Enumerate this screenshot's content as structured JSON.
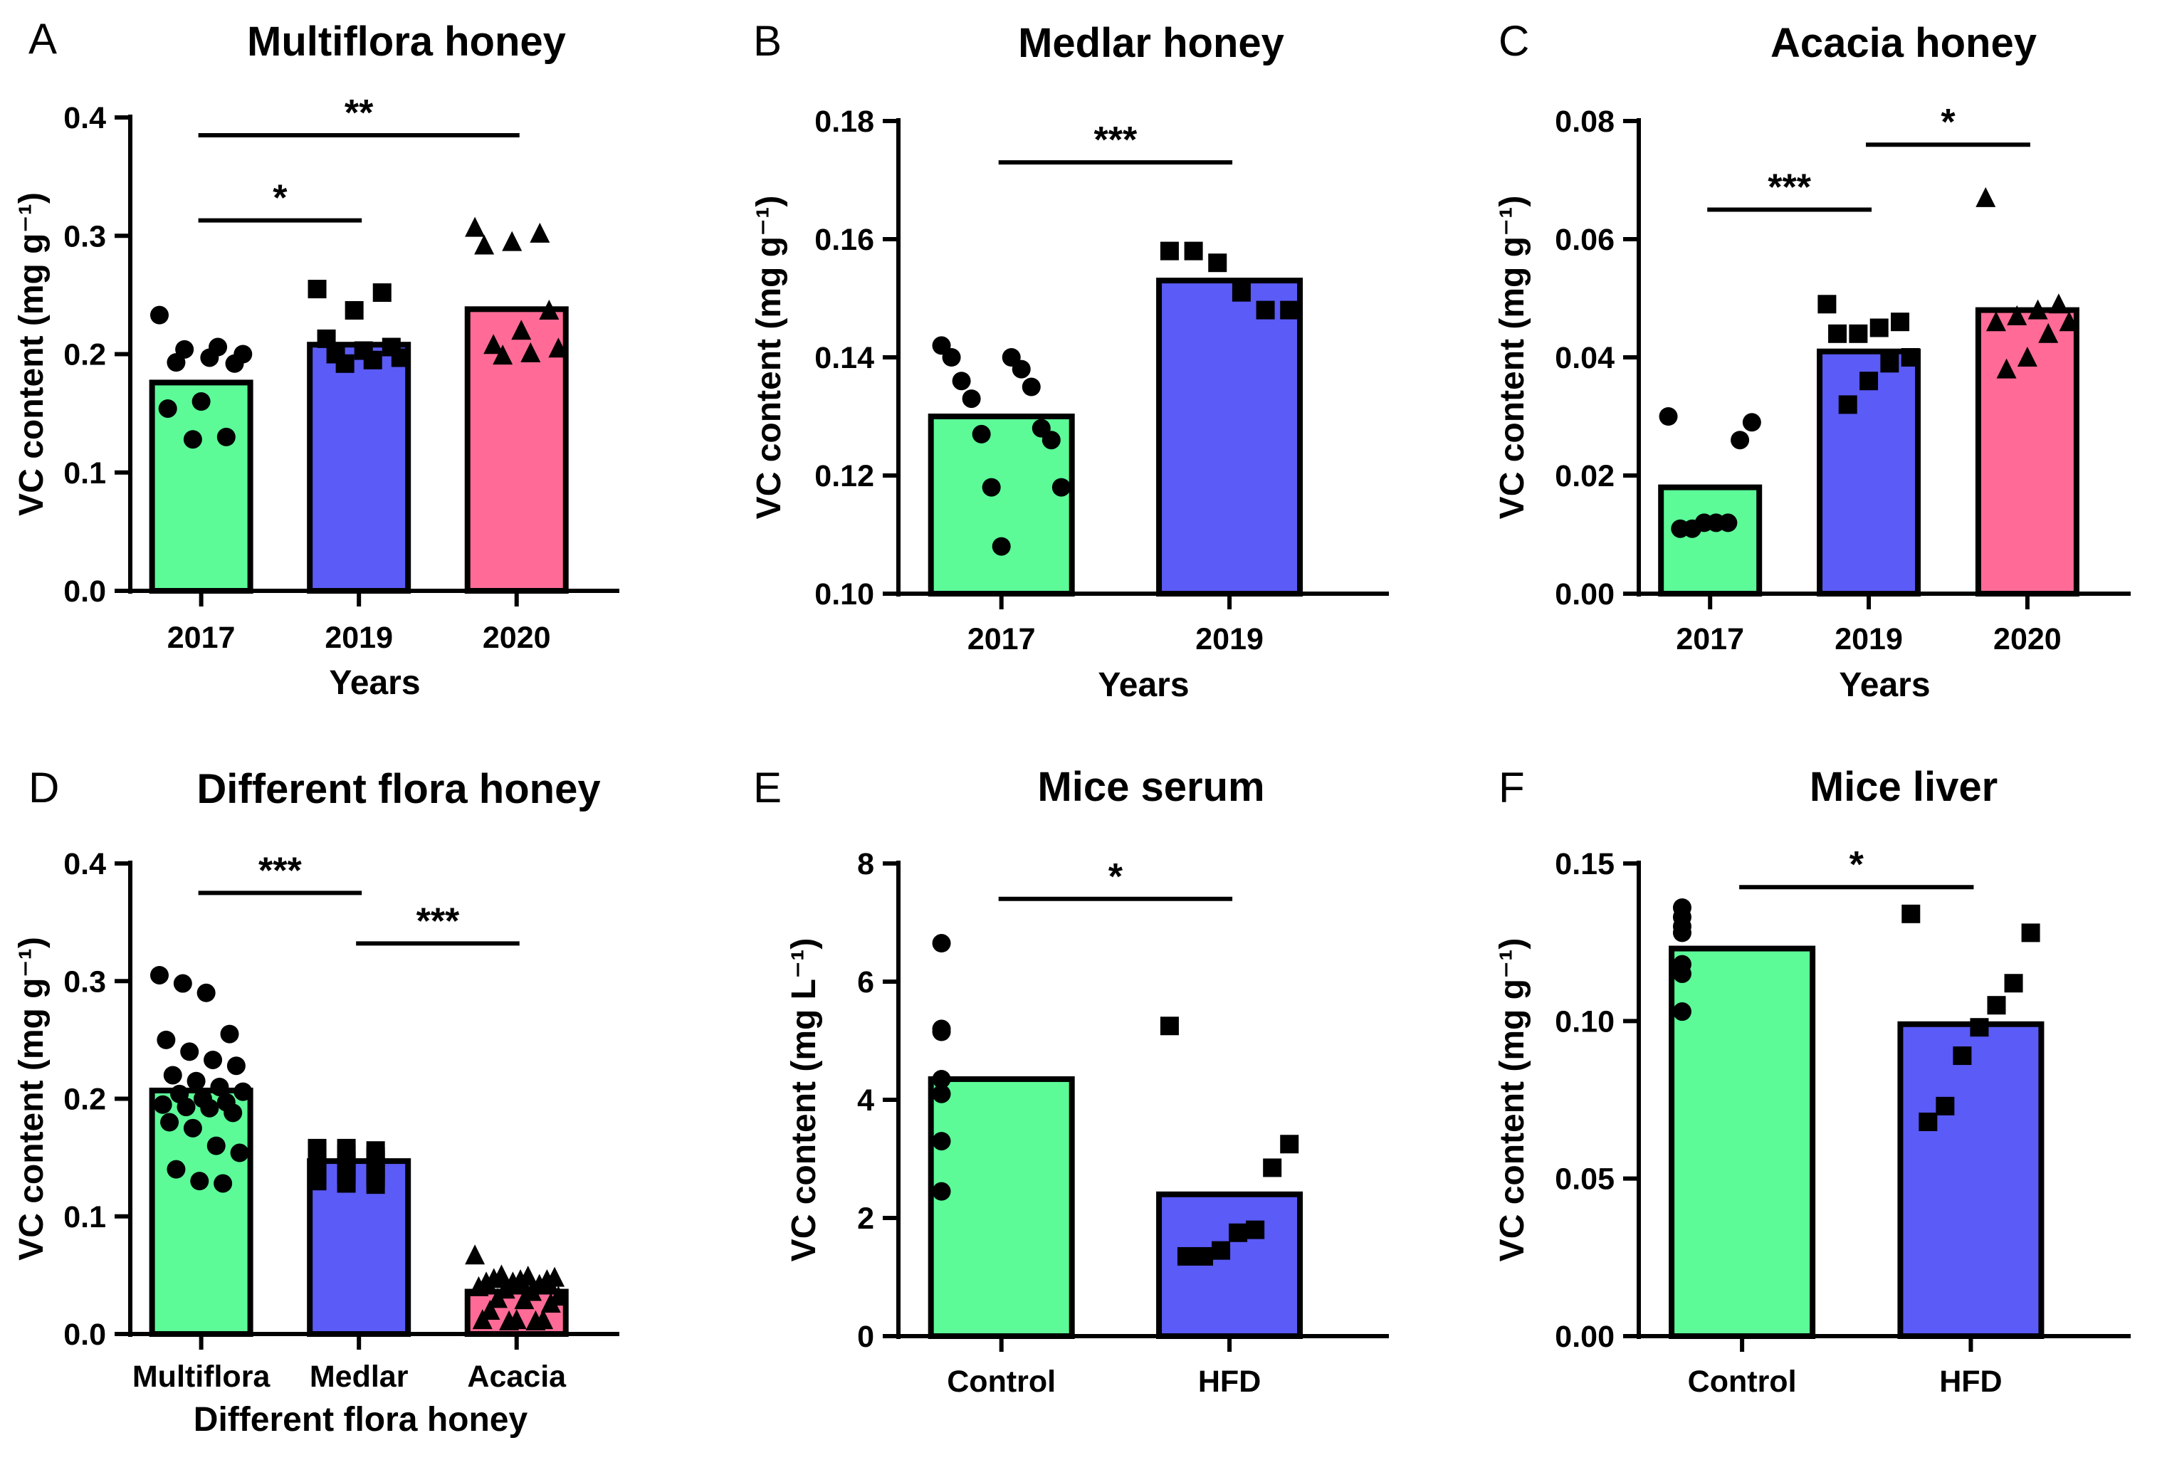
{
  "chart_data": [
    {
      "panel": "A",
      "type": "bar",
      "title": "Multiflora honey",
      "xlabel": "Years",
      "ylabel": "VC content (mg g⁻¹)",
      "ylim": [
        0,
        0.4
      ],
      "yticks": [
        "0.0",
        "0.1",
        "0.2",
        "0.3",
        "0.4"
      ],
      "categories": [
        "2017",
        "2019",
        "2020"
      ],
      "values": [
        0.176,
        0.208,
        0.238
      ],
      "colors": [
        "#5cfb98",
        "#5b5bf7",
        "#ff6b96"
      ],
      "marker_shapes": [
        "circle",
        "square",
        "triangle"
      ],
      "points": [
        [
          0.233,
          0.206,
          0.204,
          0.2,
          0.197,
          0.193,
          0.192,
          0.16,
          0.154,
          0.13,
          0.128
        ],
        [
          0.255,
          0.252,
          0.237,
          0.213,
          0.206,
          0.203,
          0.2,
          0.197,
          0.195,
          0.192
        ],
        [
          0.307,
          0.302,
          0.295,
          0.292,
          0.237,
          0.22,
          0.208,
          0.205,
          0.201,
          0.199
        ]
      ],
      "significance": [
        {
          "from": 0,
          "to": 1,
          "label": "*",
          "y": 0.313
        },
        {
          "from": 0,
          "to": 2,
          "label": "**",
          "y": 0.385
        }
      ]
    },
    {
      "panel": "B",
      "type": "bar",
      "title": "Medlar honey",
      "xlabel": "Years",
      "ylabel": "VC content (mg g⁻¹)",
      "ylim": [
        0.1,
        0.18
      ],
      "yticks": [
        "0.10",
        "0.12",
        "0.14",
        "0.16",
        "0.18"
      ],
      "categories": [
        "2017",
        "2019"
      ],
      "values": [
        0.13,
        0.153
      ],
      "colors": [
        "#5cfb98",
        "#5b5bf7"
      ],
      "marker_shapes": [
        "circle",
        "square"
      ],
      "points": [
        [
          0.142,
          0.14,
          0.14,
          0.138,
          0.136,
          0.135,
          0.133,
          0.128,
          0.127,
          0.126,
          0.118,
          0.118,
          0.108
        ],
        [
          0.158,
          0.158,
          0.156,
          0.151,
          0.148,
          0.148
        ]
      ],
      "significance": [
        {
          "from": 0,
          "to": 1,
          "label": "***",
          "y": 0.173
        }
      ]
    },
    {
      "panel": "C",
      "type": "bar",
      "title": "Acacia honey",
      "xlabel": "Years",
      "ylabel": "VC content (mg g⁻¹)",
      "ylim": [
        0,
        0.08
      ],
      "yticks": [
        "0.00",
        "0.02",
        "0.04",
        "0.06",
        "0.08"
      ],
      "categories": [
        "2017",
        "2019",
        "2020"
      ],
      "values": [
        0.018,
        0.041,
        0.048
      ],
      "colors": [
        "#5cfb98",
        "#5b5bf7",
        "#ff6b96"
      ],
      "marker_shapes": [
        "circle",
        "square",
        "triangle"
      ],
      "points": [
        [
          0.03,
          0.029,
          0.026,
          0.012,
          0.012,
          0.012,
          0.011,
          0.011
        ],
        [
          0.049,
          0.046,
          0.045,
          0.044,
          0.044,
          0.04,
          0.039,
          0.036,
          0.032
        ],
        [
          0.067,
          0.049,
          0.048,
          0.047,
          0.046,
          0.046,
          0.044,
          0.04,
          0.038
        ]
      ],
      "significance": [
        {
          "from": 0,
          "to": 1,
          "label": "***",
          "y": 0.065
        },
        {
          "from": 1,
          "to": 2,
          "label": "*",
          "y": 0.076
        }
      ]
    },
    {
      "panel": "D",
      "type": "bar",
      "title": "Different flora honey",
      "xlabel": "Different flora honey",
      "ylabel": "VC content (mg g⁻¹)",
      "ylim": [
        0,
        0.4
      ],
      "yticks": [
        "0.0",
        "0.1",
        "0.2",
        "0.3",
        "0.4"
      ],
      "categories": [
        "Multiflora",
        "Medlar",
        "Acacia"
      ],
      "values": [
        0.207,
        0.147,
        0.036
      ],
      "colors": [
        "#5cfb98",
        "#5b5bf7",
        "#ff6b96"
      ],
      "marker_shapes": [
        "circle",
        "square",
        "triangle"
      ],
      "points": [
        [
          0.305,
          0.298,
          0.29,
          0.255,
          0.25,
          0.24,
          0.233,
          0.228,
          0.22,
          0.215,
          0.21,
          0.206,
          0.204,
          0.2,
          0.197,
          0.195,
          0.193,
          0.192,
          0.188,
          0.18,
          0.175,
          0.16,
          0.154,
          0.14,
          0.13,
          0.128
        ],
        [
          0.158,
          0.158,
          0.156,
          0.155,
          0.153,
          0.151,
          0.15,
          0.148,
          0.148,
          0.145,
          0.143,
          0.142,
          0.14,
          0.14,
          0.138,
          0.136,
          0.135,
          0.133,
          0.13,
          0.128,
          0.127
        ],
        [
          0.067,
          0.05,
          0.049,
          0.048,
          0.047,
          0.046,
          0.046,
          0.044,
          0.044,
          0.042,
          0.04,
          0.038,
          0.036,
          0.032,
          0.03,
          0.029,
          0.026,
          0.02,
          0.012,
          0.012,
          0.012,
          0.011,
          0.011
        ]
      ],
      "significance": [
        {
          "from": 0,
          "to": 1,
          "label": "***",
          "y": 0.375
        },
        {
          "from": 1,
          "to": 2,
          "label": "***",
          "y": 0.332
        }
      ]
    },
    {
      "panel": "E",
      "type": "bar",
      "title": "Mice serum",
      "xlabel": "",
      "ylabel": "VC content (mg L⁻¹)",
      "ylim": [
        0,
        8
      ],
      "yticks": [
        "0",
        "2",
        "4",
        "6",
        "8"
      ],
      "categories": [
        "Control",
        "HFD"
      ],
      "values": [
        4.35,
        2.4
      ],
      "colors": [
        "#5cfb98",
        "#5b5bf7"
      ],
      "marker_shapes": [
        "circle",
        "square"
      ],
      "points": [
        [
          6.65,
          5.2,
          5.15,
          4.35,
          4.1,
          3.3,
          2.45
        ],
        [
          5.25,
          3.25,
          2.85,
          1.8,
          1.75,
          1.45,
          1.35,
          1.35
        ]
      ],
      "significance": [
        {
          "from": 0,
          "to": 1,
          "label": "*",
          "y": 7.4
        }
      ]
    },
    {
      "panel": "F",
      "type": "bar",
      "title": "Mice liver",
      "xlabel": "",
      "ylabel": "VC content (mg g⁻¹)",
      "ylim": [
        0,
        0.15
      ],
      "yticks": [
        "0.00",
        "0.05",
        "0.10",
        "0.15"
      ],
      "categories": [
        "Control",
        "HFD"
      ],
      "values": [
        0.123,
        0.099
      ],
      "colors": [
        "#5cfb98",
        "#5b5bf7"
      ],
      "marker_shapes": [
        "circle",
        "square"
      ],
      "points": [
        [
          0.136,
          0.133,
          0.13,
          0.128,
          0.118,
          0.115,
          0.103
        ],
        [
          0.134,
          0.128,
          0.112,
          0.105,
          0.098,
          0.089,
          0.073,
          0.068
        ]
      ],
      "significance": [
        {
          "from": 0,
          "to": 1,
          "label": "*",
          "y": 0.1425
        }
      ]
    }
  ]
}
